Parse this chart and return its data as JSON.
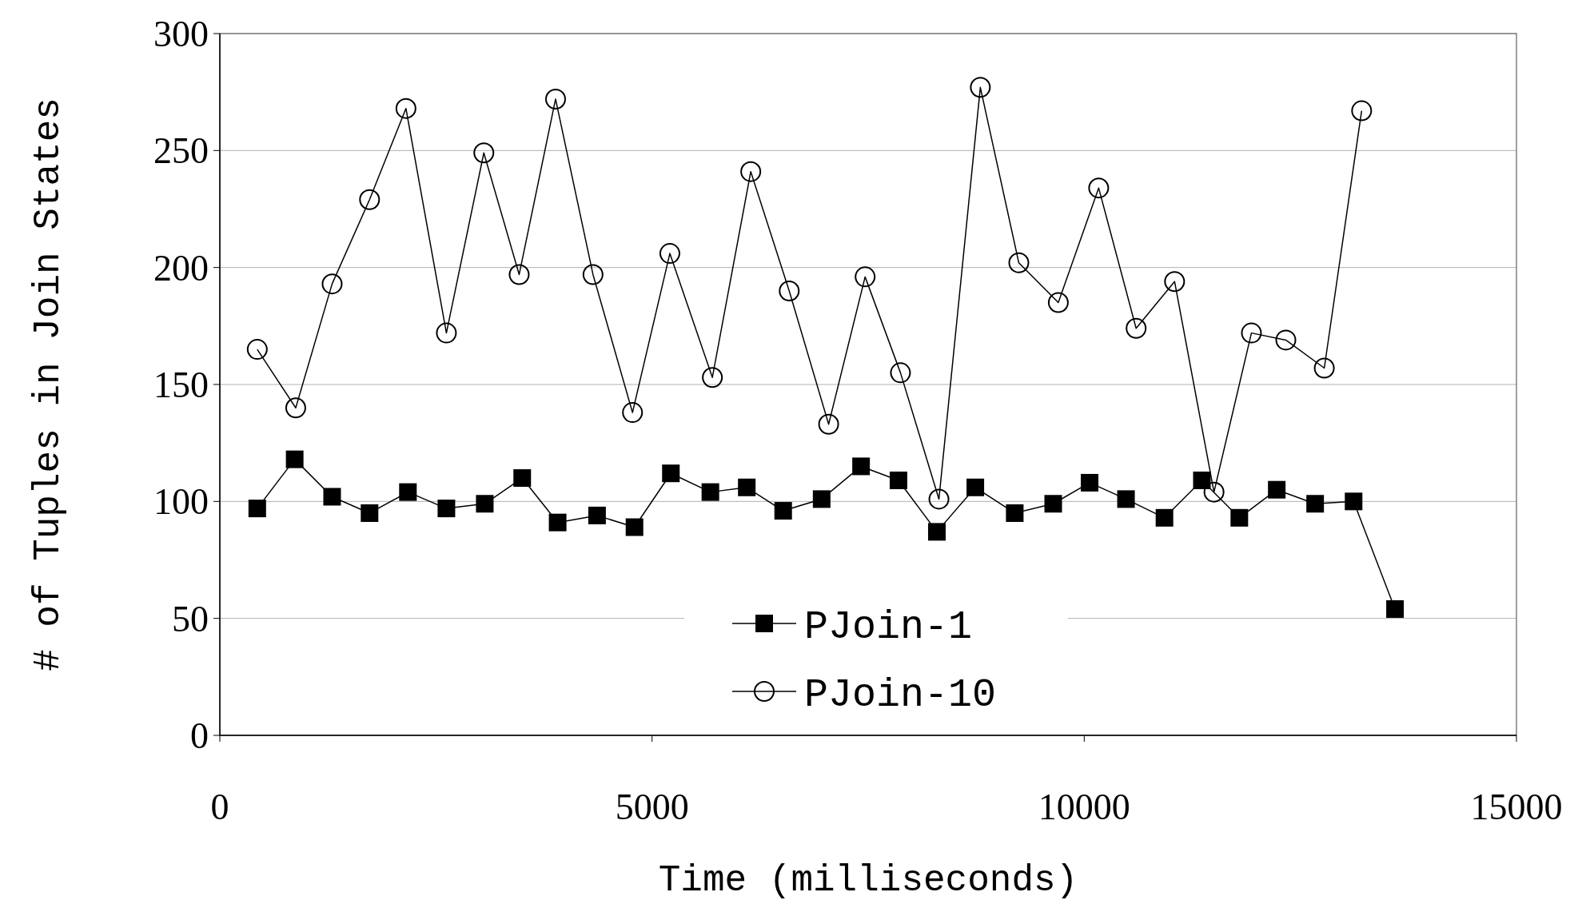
{
  "chart_data": {
    "type": "line",
    "xlabel": "Time (milliseconds)",
    "ylabel": "# of Tuples in Join States",
    "xlim": [
      0,
      15000
    ],
    "xticks": [
      0,
      5000,
      10000,
      15000
    ],
    "ylim": [
      0,
      300
    ],
    "yticks": [
      0,
      50,
      100,
      150,
      200,
      250,
      300
    ],
    "grid": "y",
    "legend": "bottom",
    "series": [
      {
        "name": "PJoin-1",
        "color": "#000000",
        "marker": "square",
        "x": [
          433,
          866,
          1299,
          1732,
          2176,
          2621,
          3065,
          3498,
          3908,
          4364,
          4797,
          5218,
          5675,
          6096,
          6517,
          6962,
          7418,
          7851,
          8295,
          8740,
          9196,
          9641,
          10062,
          10483,
          10928,
          11361,
          11794,
          12227,
          12671,
          13116,
          13595
        ],
        "values": [
          97,
          118,
          102,
          95,
          104,
          97,
          99,
          110,
          91,
          94,
          89,
          112,
          104,
          106,
          96,
          101,
          115,
          109,
          87,
          106,
          95,
          99,
          108,
          101,
          93,
          109,
          93,
          105,
          99,
          100,
          54
        ]
      },
      {
        "name": "PJoin-10",
        "color": "#000000",
        "marker": "circle",
        "x": [
          433,
          878,
          1299,
          1732,
          2153,
          2621,
          3054,
          3463,
          3884,
          4317,
          4774,
          5206,
          5698,
          6142,
          6587,
          7043,
          7465,
          7874,
          8319,
          8798,
          9243,
          9700,
          10167,
          10600,
          11045,
          11501,
          11934,
          12332,
          12777,
          13209
        ],
        "values": [
          165,
          140,
          193,
          229,
          268,
          172,
          249,
          197,
          272,
          197,
          138,
          206,
          153,
          241,
          190,
          133,
          196,
          155,
          101,
          277,
          202,
          185,
          234,
          174,
          194,
          104,
          172,
          169,
          157,
          267
        ]
      }
    ]
  }
}
